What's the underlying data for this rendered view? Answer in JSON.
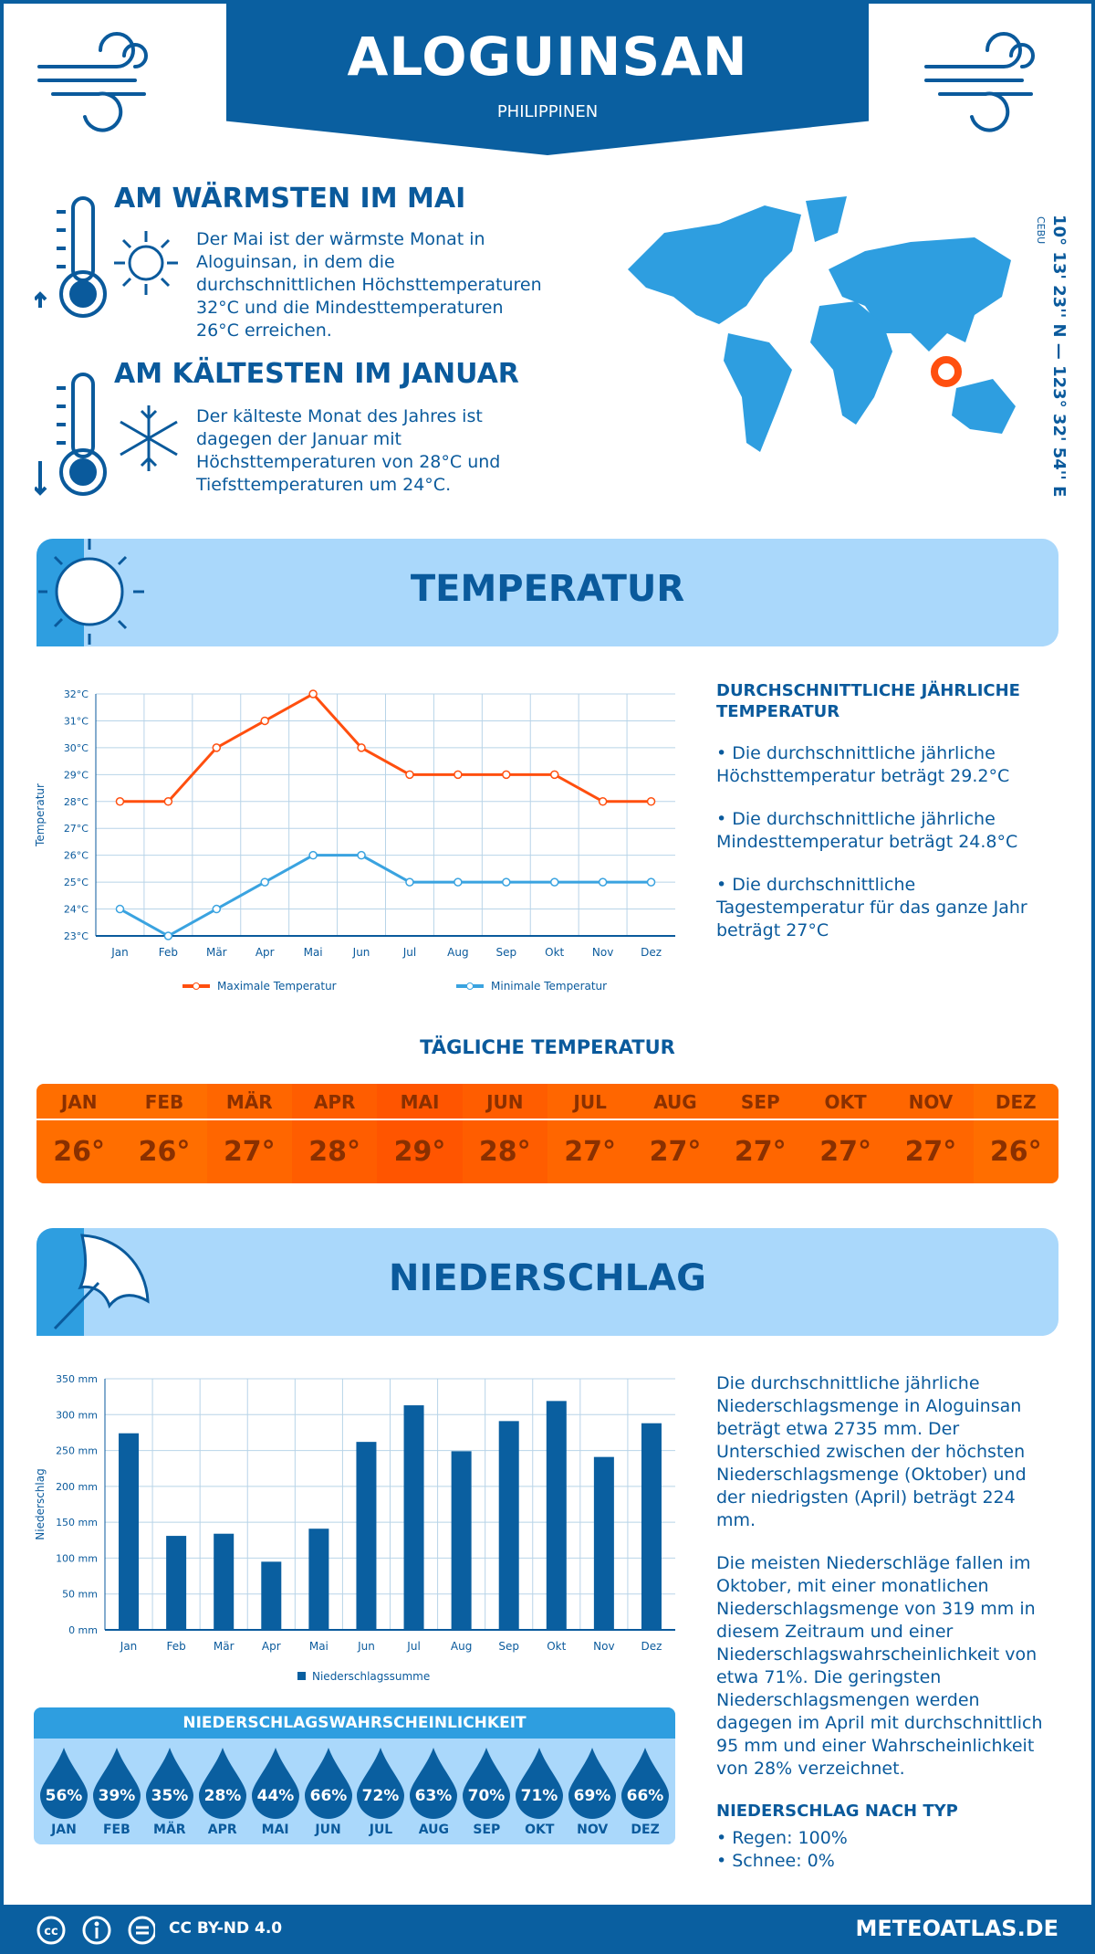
{
  "header": {
    "title": "ALOGUINSAN",
    "country": "PHILIPPINEN"
  },
  "warmest": {
    "title": "AM WÄRMSTEN IM MAI",
    "text": "Der Mai ist der wärmste Monat in Aloguinsan, in dem die durchschnittlichen Höchsttemperaturen 32°C und die Mindesttemperaturen 26°C erreichen."
  },
  "coldest": {
    "title": "AM KÄLTESTEN IM JANUAR",
    "text": "Der kälteste Monat des Jahres ist dagegen der Januar mit Höchsttemperaturen von 28°C und Tiefsttemperaturen um 24°C."
  },
  "location": {
    "coords": "10° 13' 23'' N — 123° 32' 54'' E",
    "region": "CEBU"
  },
  "temperature": {
    "section_title": "TEMPERATUR",
    "side_title": "DURCHSCHNITTLICHE JÄHRLICHE TEMPERATUR",
    "bullets": [
      "• Die durchschnittliche jährliche Höchsttemperatur beträgt 29.2°C",
      "• Die durchschnittliche jährliche Mindesttemperatur beträgt 24.8°C",
      "• Die durchschnittliche Tagestemperatur für das ganze Jahr beträgt 27°C"
    ],
    "daily_title": "TÄGLICHE TEMPERATUR",
    "daily": [
      {
        "m": "JAN",
        "v": "26°"
      },
      {
        "m": "FEB",
        "v": "26°"
      },
      {
        "m": "MÄR",
        "v": "27°"
      },
      {
        "m": "APR",
        "v": "28°"
      },
      {
        "m": "MAI",
        "v": "29°"
      },
      {
        "m": "JUN",
        "v": "28°"
      },
      {
        "m": "JUL",
        "v": "27°"
      },
      {
        "m": "AUG",
        "v": "27°"
      },
      {
        "m": "SEP",
        "v": "27°"
      },
      {
        "m": "OKT",
        "v": "27°"
      },
      {
        "m": "NOV",
        "v": "27°"
      },
      {
        "m": "DEZ",
        "v": "26°"
      }
    ],
    "daily_colors": {
      "26": "#ff6e00",
      "27": "#ff6600",
      "28": "#ff5d00",
      "29": "#ff5500"
    }
  },
  "precipitation": {
    "section_title": "NIEDERSCHLAG",
    "text1": "Die durchschnittliche jährliche Niederschlagsmenge in Aloguinsan beträgt etwa 2735 mm. Der Unterschied zwischen der höchsten Niederschlagsmenge (Oktober) und der niedrigsten (April) beträgt 224 mm.",
    "text2": "Die meisten Niederschläge fallen im Oktober, mit einer monatlichen Niederschlagsmenge von 319 mm in diesem Zeitraum und einer Niederschlagswahrscheinlichkeit von etwa 71%. Die geringsten Niederschlagsmengen werden dagegen im April mit durchschnittlich 95 mm und einer Wahrscheinlichkeit von 28% verzeichnet.",
    "type_title": "NIEDERSCHLAG NACH TYP",
    "types": [
      "• Regen: 100%",
      "• Schnee: 0%"
    ],
    "prob_title": "NIEDERSCHLAGSWAHRSCHEINLICHKEIT",
    "prob": [
      {
        "m": "JAN",
        "v": "56%"
      },
      {
        "m": "FEB",
        "v": "39%"
      },
      {
        "m": "MÄR",
        "v": "35%"
      },
      {
        "m": "APR",
        "v": "28%"
      },
      {
        "m": "MAI",
        "v": "44%"
      },
      {
        "m": "JUN",
        "v": "66%"
      },
      {
        "m": "JUL",
        "v": "72%"
      },
      {
        "m": "AUG",
        "v": "63%"
      },
      {
        "m": "SEP",
        "v": "70%"
      },
      {
        "m": "OKT",
        "v": "71%"
      },
      {
        "m": "NOV",
        "v": "69%"
      },
      {
        "m": "DEZ",
        "v": "66%"
      }
    ]
  },
  "footer": {
    "license": "CC BY-ND 4.0",
    "site": "METEOATLAS.DE"
  },
  "colors": {
    "primary": "#0a5fa0",
    "light": "#aad8fb",
    "accent": "#2e9ee0",
    "max": "#ff4f0f",
    "min": "#3aa3e0"
  },
  "chart_data": [
    {
      "type": "line",
      "categories": [
        "Jan",
        "Feb",
        "Mär",
        "Apr",
        "Mai",
        "Jun",
        "Jul",
        "Aug",
        "Sep",
        "Okt",
        "Nov",
        "Dez"
      ],
      "series": [
        {
          "name": "Maximale Temperatur",
          "values": [
            28,
            28,
            30,
            31,
            32,
            30,
            29,
            29,
            29,
            29,
            28,
            28
          ]
        },
        {
          "name": "Minimale Temperatur",
          "values": [
            24,
            23,
            24,
            25,
            26,
            26,
            25,
            25,
            25,
            25,
            25,
            25
          ]
        }
      ],
      "ylabel": "Temperatur",
      "ylim": [
        23,
        32
      ],
      "yticks": [
        "23°C",
        "24°C",
        "25°C",
        "26°C",
        "27°C",
        "28°C",
        "29°C",
        "30°C",
        "31°C",
        "32°C"
      ],
      "grid": true,
      "legend": "bottom"
    },
    {
      "type": "bar",
      "categories": [
        "Jan",
        "Feb",
        "Mär",
        "Apr",
        "Mai",
        "Jun",
        "Jul",
        "Aug",
        "Sep",
        "Okt",
        "Nov",
        "Dez"
      ],
      "series": [
        {
          "name": "Niederschlagssumme",
          "values": [
            274,
            131,
            134,
            95,
            141,
            262,
            313,
            249,
            291,
            319,
            241,
            288
          ]
        }
      ],
      "ylabel": "Niederschlag",
      "ylim": [
        0,
        350
      ],
      "yticks": [
        "0 mm",
        "50 mm",
        "100 mm",
        "150 mm",
        "200 mm",
        "250 mm",
        "300 mm",
        "350 mm"
      ],
      "grid": true,
      "legend": "bottom"
    }
  ]
}
